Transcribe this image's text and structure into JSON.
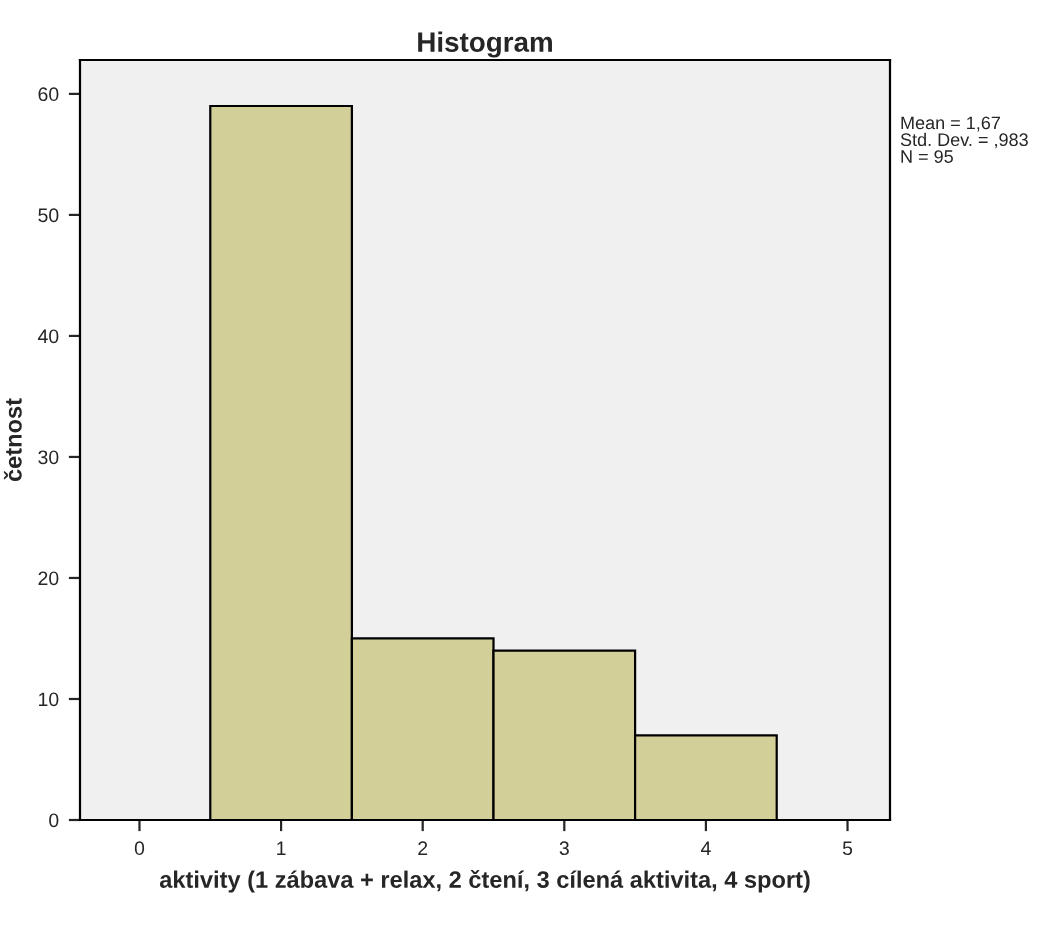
{
  "chart_data": {
    "type": "histogram",
    "title": "Histogram",
    "xlabel": "aktivity (1 zábava + relax, 2 čtení, 3 cílená aktivita, 4 sport)",
    "ylabel": "četnost",
    "bins": [
      0.5,
      1.5,
      2.5,
      3.5,
      4.5
    ],
    "values": [
      59,
      15,
      14,
      7
    ],
    "color": "#d3cf99",
    "xlim": [
      -0.42,
      5.3
    ],
    "xticks": [
      0,
      1,
      2,
      3,
      4,
      5
    ],
    "ylim": [
      0,
      62.8
    ],
    "yticks": [
      0,
      10,
      20,
      30,
      40,
      50,
      60
    ],
    "annotations": [
      "Mean = 1,67",
      "Std. Dev. = ,983",
      "N = 95"
    ],
    "grid": false
  }
}
